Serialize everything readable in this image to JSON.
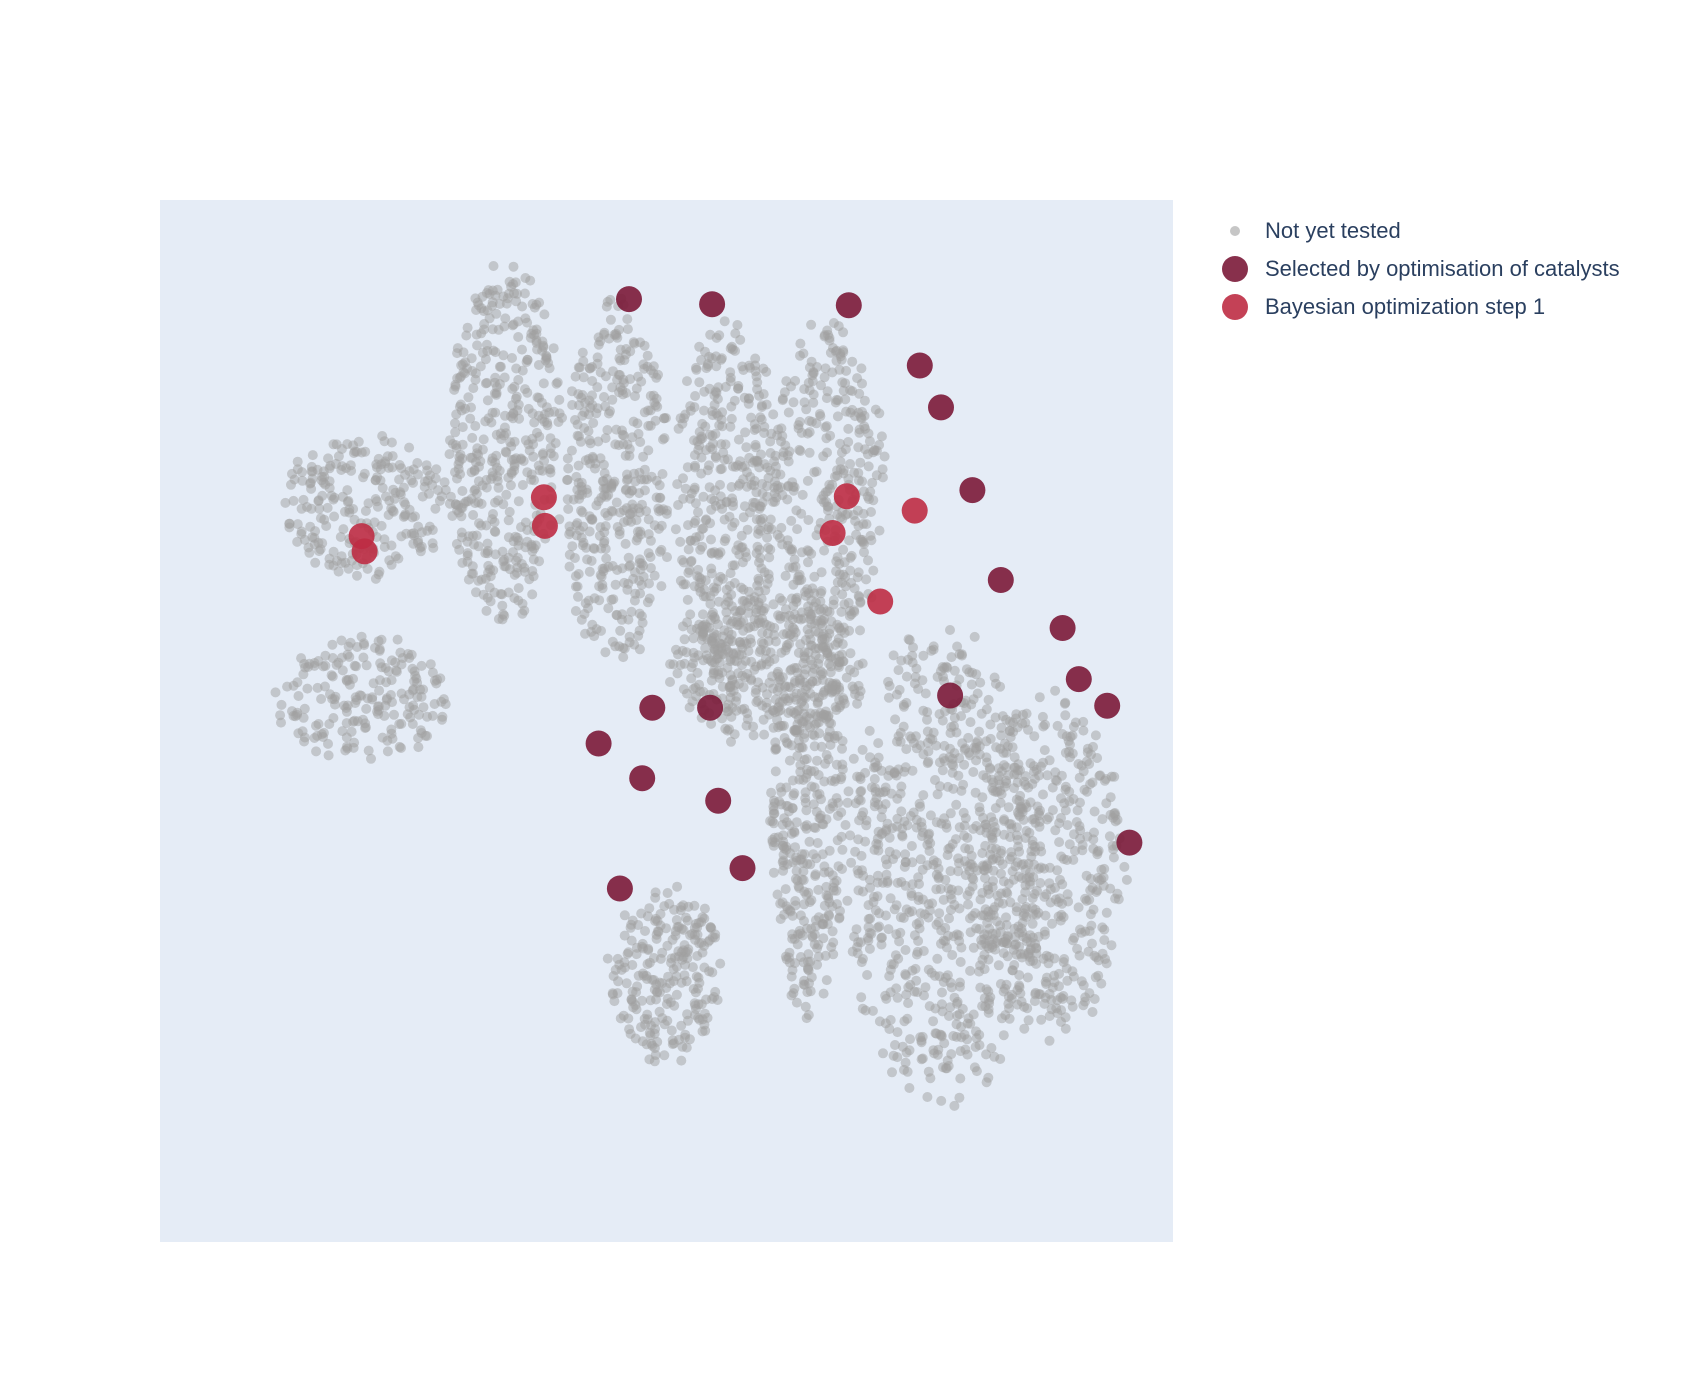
{
  "chart_data": {
    "type": "scatter",
    "title": "",
    "xlabel": "",
    "ylabel": "",
    "axes_visible": false,
    "grid": false,
    "plot_background": "#e5ecf6",
    "xlim": [
      -20,
      80
    ],
    "ylim": [
      -10,
      92
    ],
    "legend_position": "top-right",
    "series": [
      {
        "name": "Not yet tested",
        "color": "#a0a0a0",
        "marker_opacity": 0.5,
        "marker": "small-circle",
        "clusters": [
          {
            "cx": 0,
            "cy": 62,
            "rx": 9,
            "ry": 7.5,
            "n": 230
          },
          {
            "cx": 0,
            "cy": 43,
            "rx": 9,
            "ry": 6.5,
            "n": 200
          },
          {
            "cx": 14,
            "cy": 68,
            "rx": 6,
            "ry": 19,
            "n": 420
          },
          {
            "cx": 25,
            "cy": 64,
            "rx": 5.5,
            "ry": 19,
            "n": 380
          },
          {
            "cx": 36,
            "cy": 62,
            "rx": 5.5,
            "ry": 20,
            "n": 420
          },
          {
            "cx": 46,
            "cy": 64,
            "rx": 6,
            "ry": 17,
            "n": 330
          },
          {
            "cx": 40,
            "cy": 46,
            "rx": 10,
            "ry": 8,
            "n": 320
          },
          {
            "cx": 30,
            "cy": 16,
            "rx": 6,
            "ry": 9,
            "n": 230
          },
          {
            "cx": 44,
            "cy": 33,
            "rx": 4,
            "ry": 22,
            "n": 380
          },
          {
            "cx": 57,
            "cy": 27,
            "rx": 10,
            "ry": 25,
            "n": 720
          },
          {
            "cx": 68,
            "cy": 27,
            "rx": 8,
            "ry": 18,
            "n": 420
          }
        ]
      },
      {
        "name": "Selected by optimisation of catalysts",
        "color": "#7b1a38",
        "points": [
          {
            "x": 26.3,
            "y": 82.3
          },
          {
            "x": 34.5,
            "y": 81.8
          },
          {
            "x": 48.0,
            "y": 81.7
          },
          {
            "x": 55.0,
            "y": 75.8
          },
          {
            "x": 57.1,
            "y": 71.7
          },
          {
            "x": 60.2,
            "y": 63.6
          },
          {
            "x": 63.0,
            "y": 54.8
          },
          {
            "x": 69.1,
            "y": 50.1
          },
          {
            "x": 70.7,
            "y": 45.1
          },
          {
            "x": 58.0,
            "y": 43.5
          },
          {
            "x": 73.5,
            "y": 42.5
          },
          {
            "x": 28.6,
            "y": 42.3
          },
          {
            "x": 34.3,
            "y": 42.3
          },
          {
            "x": 23.3,
            "y": 38.8
          },
          {
            "x": 27.6,
            "y": 35.4
          },
          {
            "x": 35.1,
            "y": 33.2
          },
          {
            "x": 75.7,
            "y": 29.1
          },
          {
            "x": 37.5,
            "y": 26.6
          },
          {
            "x": 25.4,
            "y": 24.6
          }
        ]
      },
      {
        "name": "Bayesian optimization step 1",
        "color": "#be2c44",
        "points": [
          {
            "x": -0.1,
            "y": 59.1
          },
          {
            "x": 0.2,
            "y": 57.6
          },
          {
            "x": 17.9,
            "y": 62.9
          },
          {
            "x": 18.0,
            "y": 60.1
          },
          {
            "x": 47.8,
            "y": 63.0
          },
          {
            "x": 54.5,
            "y": 61.6
          },
          {
            "x": 46.4,
            "y": 59.4
          },
          {
            "x": 51.1,
            "y": 52.7
          }
        ]
      }
    ]
  }
}
